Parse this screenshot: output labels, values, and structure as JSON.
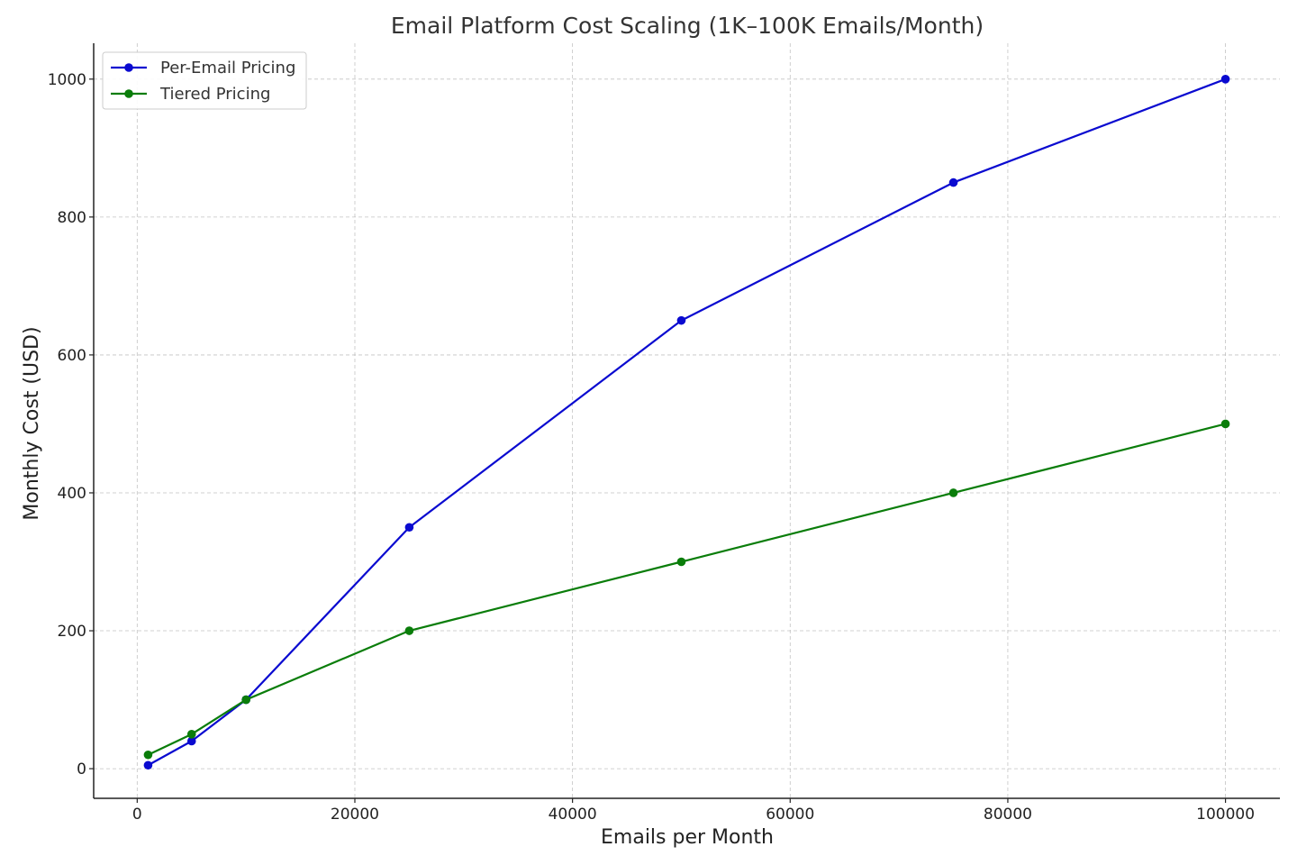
{
  "chart_data": {
    "type": "line",
    "title": "Email Platform Cost Scaling (1K–100K Emails/Month)",
    "xlabel": "Emails per Month",
    "ylabel": "Monthly Cost (USD)",
    "xlim": [
      -4000,
      105000
    ],
    "ylim": [
      -43,
      1052
    ],
    "x_ticks": [
      0,
      20000,
      40000,
      60000,
      80000,
      100000
    ],
    "y_ticks": [
      0,
      200,
      400,
      600,
      800,
      1000
    ],
    "grid": true,
    "legend_position": "top-left",
    "x": [
      1000,
      5000,
      10000,
      25000,
      50000,
      75000,
      100000
    ],
    "series": [
      {
        "name": "Per-Email Pricing",
        "color": "#0a0ad0",
        "values": [
          5,
          40,
          100,
          350,
          650,
          850,
          1000
        ]
      },
      {
        "name": "Tiered Pricing",
        "color": "#0a7d0a",
        "values": [
          20,
          50,
          100,
          200,
          300,
          400,
          500
        ]
      }
    ]
  }
}
